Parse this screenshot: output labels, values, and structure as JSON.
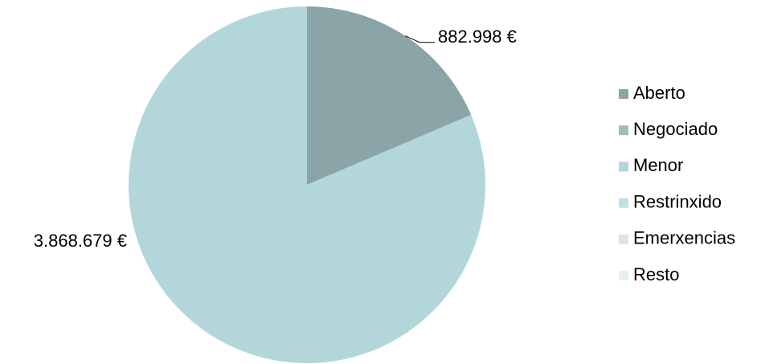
{
  "chart_data": {
    "type": "pie",
    "categories": [
      "Aberto",
      "Negociado",
      "Menor",
      "Restrinxido",
      "Emerxencias",
      "Resto"
    ],
    "values": [
      882998,
      0,
      3868679,
      0,
      0,
      0
    ],
    "value_labels": [
      "882.998 €",
      null,
      "3.868.679 €",
      null,
      null,
      null
    ],
    "colors": [
      "#8ba4a7",
      "#9fbcbf",
      "#b3d6da",
      "#c2e0e3",
      "#d2e8ea",
      "#e3f1f2"
    ],
    "legend": "right"
  }
}
